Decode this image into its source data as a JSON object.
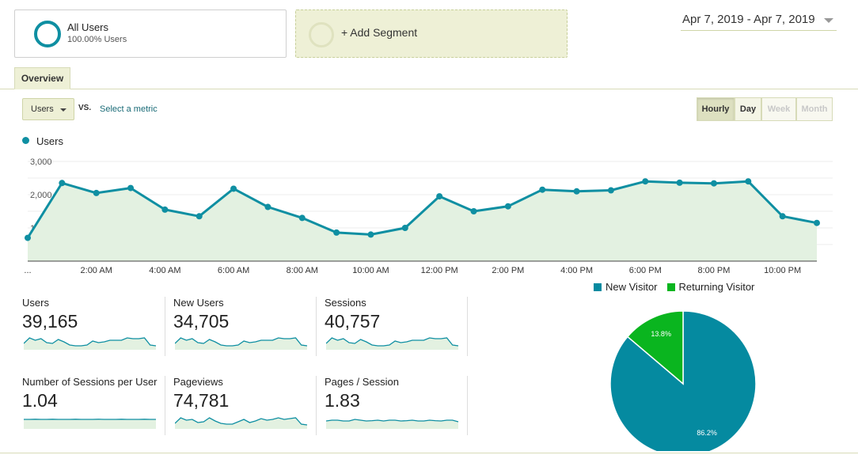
{
  "segments": {
    "all_users": {
      "name": "All Users",
      "sub": "100.00% Users"
    },
    "add_segment_label": "+ Add Segment"
  },
  "date_range": "Apr 7, 2019 - Apr 7, 2019",
  "tabs": {
    "overview": "Overview"
  },
  "controls": {
    "metric_select": "Users",
    "vs_label": "VS.",
    "select_metric": "Select a metric",
    "periods": [
      {
        "label": "Hourly",
        "state": "active"
      },
      {
        "label": "Day",
        "state": "normal"
      },
      {
        "label": "Week",
        "state": "disabled"
      },
      {
        "label": "Month",
        "state": "disabled"
      }
    ]
  },
  "legend": {
    "label": "Users",
    "color": "#0f8fa2"
  },
  "chart_data": [
    {
      "type": "area",
      "series": [
        {
          "name": "Users",
          "values": [
            700,
            2350,
            2050,
            2200,
            1550,
            1350,
            2180,
            1630,
            1300,
            860,
            800,
            1000,
            1950,
            1500,
            1650,
            2150,
            2100,
            2130,
            2400,
            2360,
            2340,
            2400,
            1350,
            1150
          ]
        }
      ],
      "x": [
        "0:00",
        "1:00",
        "2:00",
        "3:00",
        "4:00",
        "5:00",
        "6:00",
        "7:00",
        "8:00",
        "9:00",
        "10:00",
        "11:00",
        "12:00",
        "13:00",
        "14:00",
        "15:00",
        "16:00",
        "17:00",
        "18:00",
        "19:00",
        "20:00",
        "21:00",
        "22:00",
        "23:00"
      ],
      "x_tick_labels": [
        "...",
        "2:00 AM",
        "4:00 AM",
        "6:00 AM",
        "8:00 AM",
        "10:00 AM",
        "12:00 PM",
        "2:00 PM",
        "4:00 PM",
        "6:00 PM",
        "8:00 PM",
        "10:00 PM"
      ],
      "y_tick_labels": [
        "3,000",
        "2,000",
        "1,000"
      ],
      "ylim": [
        0,
        3000
      ],
      "grid": true,
      "line_color": "#0f8fa2",
      "fill_color": "#e3f1e1"
    },
    {
      "type": "pie",
      "categories": [
        "New Visitor",
        "Returning Visitor"
      ],
      "values": [
        86.2,
        13.8
      ],
      "labels": [
        "86.2%",
        "13.8%"
      ],
      "colors": [
        "#058aa0",
        "#0ab51f"
      ],
      "legend_position": "top"
    }
  ],
  "tiles": [
    {
      "label": "Users",
      "value": "39,165",
      "spark": [
        0.4,
        0.75,
        0.6,
        0.7,
        0.45,
        0.4,
        0.65,
        0.5,
        0.3,
        0.25,
        0.25,
        0.3,
        0.55,
        0.45,
        0.5,
        0.6,
        0.6,
        0.6,
        0.75,
        0.7,
        0.7,
        0.75,
        0.3,
        0.25
      ]
    },
    {
      "label": "New Users",
      "value": "34,705",
      "spark": [
        0.4,
        0.75,
        0.6,
        0.7,
        0.45,
        0.4,
        0.65,
        0.5,
        0.3,
        0.25,
        0.25,
        0.3,
        0.55,
        0.45,
        0.5,
        0.6,
        0.6,
        0.6,
        0.75,
        0.7,
        0.7,
        0.75,
        0.3,
        0.25
      ]
    },
    {
      "label": "Sessions",
      "value": "40,757",
      "spark": [
        0.4,
        0.75,
        0.6,
        0.7,
        0.45,
        0.4,
        0.65,
        0.5,
        0.3,
        0.25,
        0.25,
        0.3,
        0.55,
        0.45,
        0.5,
        0.6,
        0.6,
        0.6,
        0.75,
        0.7,
        0.7,
        0.75,
        0.3,
        0.25
      ]
    },
    {
      "label": "Number of Sessions per User",
      "value": "1.04",
      "spark": [
        0.6,
        0.6,
        0.61,
        0.6,
        0.6,
        0.61,
        0.6,
        0.6,
        0.6,
        0.61,
        0.6,
        0.6,
        0.6,
        0.61,
        0.6,
        0.6,
        0.6,
        0.61,
        0.6,
        0.6,
        0.6,
        0.61,
        0.6,
        0.6
      ]
    },
    {
      "label": "Pageviews",
      "value": "74,781",
      "spark": [
        0.35,
        0.7,
        0.55,
        0.6,
        0.4,
        0.45,
        0.7,
        0.5,
        0.35,
        0.3,
        0.3,
        0.45,
        0.6,
        0.4,
        0.5,
        0.65,
        0.55,
        0.6,
        0.7,
        0.6,
        0.65,
        0.7,
        0.3,
        0.25
      ]
    },
    {
      "label": "Pages / Session",
      "value": "1.83",
      "spark": [
        0.5,
        0.55,
        0.55,
        0.5,
        0.5,
        0.6,
        0.55,
        0.5,
        0.52,
        0.55,
        0.5,
        0.55,
        0.55,
        0.5,
        0.52,
        0.55,
        0.5,
        0.5,
        0.55,
        0.52,
        0.5,
        0.55,
        0.55,
        0.45
      ]
    }
  ]
}
